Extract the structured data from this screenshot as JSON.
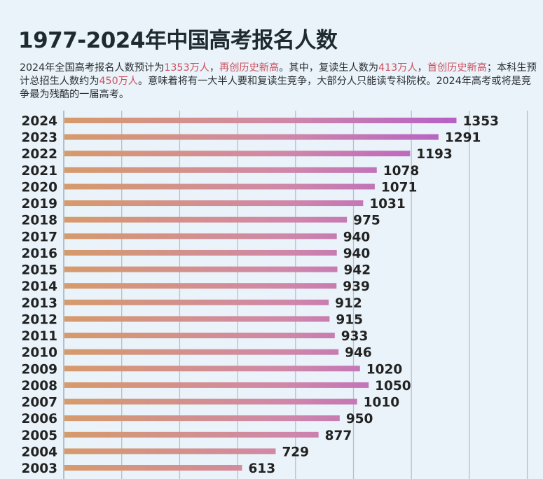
{
  "title": "1977-2024年中国高考报名人数",
  "description": {
    "p1": "2024年全国高考报名人数预计为",
    "h1": "1353万人",
    "p2": "，",
    "h2": "再创历史新高",
    "p3": "。其中，复读生人数为",
    "h3": "413万人",
    "p4": "，",
    "h4": "首创历史新高",
    "p5": "；本科生预计总招生人数约为",
    "h5": "450万人",
    "p6": "。意味着将有一大半人要和复读生竞争，大部分人只能读专科院校。2024年高考或将是竞争最为残酷的一届高考。"
  },
  "colors": {
    "bar_start": "#d79a6a",
    "bar_end": "#b45fc8",
    "highlight": "#d04f5e"
  },
  "chart_data": {
    "type": "bar",
    "orientation": "horizontal",
    "title": "1977-2024年中国高考报名人数",
    "unit": "万人",
    "categories": [
      "2024",
      "2023",
      "2022",
      "2021",
      "2020",
      "2019",
      "2018",
      "2017",
      "2016",
      "2015",
      "2014",
      "2013",
      "2012",
      "2011",
      "2010",
      "2009",
      "2008",
      "2007",
      "2006",
      "2005",
      "2004",
      "2003"
    ],
    "values": [
      1353,
      1291,
      1193,
      1078,
      1071,
      1031,
      975,
      940,
      940,
      942,
      939,
      912,
      915,
      933,
      946,
      1020,
      1050,
      1010,
      950,
      877,
      729,
      613
    ],
    "xlim": [
      0,
      1600
    ],
    "grid_step": 200,
    "grid": true
  }
}
